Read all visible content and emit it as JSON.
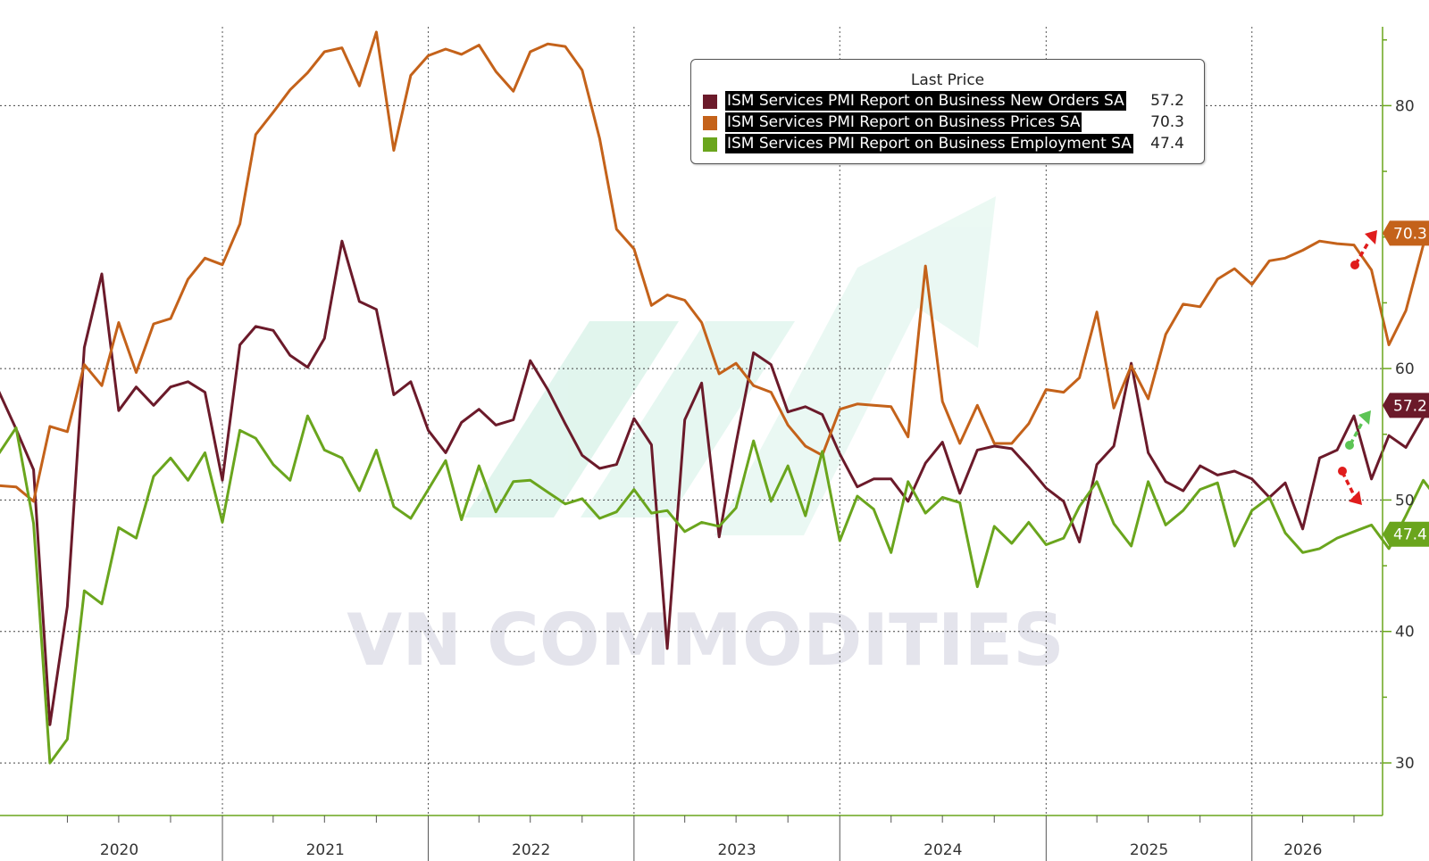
{
  "chart_data": {
    "type": "line",
    "title": "",
    "xlabel": "",
    "ylabel": "",
    "ylim": [
      26,
      86
    ],
    "x_ticks": [
      "2020",
      "2021",
      "2022",
      "2023",
      "2024",
      "2025",
      "2026"
    ],
    "y_ticks": [
      30,
      40,
      50,
      60,
      80
    ],
    "grid": true,
    "legend": {
      "title": "Last Price",
      "placement": "top-right"
    },
    "watermark": "VN COMMODITIES",
    "series": [
      {
        "name": "ISM Services PMI Report on Business New Orders SA",
        "last": "57.2",
        "color": "#6b1a2a",
        "start": "2019-12",
        "values": [
          58.3,
          55.4,
          52.3,
          32.9,
          41.9,
          61.6,
          67.2,
          56.8,
          58.6,
          57.2,
          58.6,
          59.0,
          58.2,
          51.5,
          61.8,
          63.2,
          62.9,
          61.0,
          60.1,
          62.3,
          69.7,
          65.1,
          64.5,
          58.0,
          59.0,
          55.3,
          53.6,
          55.9,
          56.9,
          55.7,
          56.1,
          60.6,
          58.4,
          55.8,
          53.4,
          52.4,
          52.7,
          56.2,
          54.2,
          38.7,
          56.1,
          58.9,
          47.2,
          54.3,
          61.2,
          60.3,
          56.7,
          57.1,
          56.5,
          53.5,
          51.0,
          51.6,
          51.6,
          49.9,
          52.8,
          54.4,
          50.5,
          53.8,
          54.1,
          53.9,
          52.5,
          50.9,
          49.9,
          46.8,
          52.7,
          54.1,
          60.4,
          53.6,
          51.4,
          50.7,
          52.6,
          51.9,
          52.2,
          51.6,
          50.2,
          51.3,
          47.8,
          53.2,
          53.8,
          56.4,
          51.6,
          54.9,
          54.0,
          56.3,
          57.0,
          51.9,
          55.7,
          52.8,
          58.4,
          61.0,
          52.0,
          56.5,
          55.8,
          57.2
        ]
      },
      {
        "name": "ISM Services PMI Report on Business Prices SA",
        "last": "70.3",
        "color": "#c4621a",
        "start": "2019-12",
        "values": [
          51.1,
          51.0,
          49.9,
          55.6,
          55.2,
          60.3,
          58.7,
          63.5,
          59.7,
          63.4,
          63.8,
          66.8,
          68.4,
          67.9,
          71.0,
          77.8,
          79.5,
          81.2,
          82.5,
          84.1,
          84.4,
          81.5,
          85.6,
          76.6,
          82.3,
          83.8,
          84.3,
          83.9,
          84.6,
          82.6,
          81.1,
          84.1,
          84.7,
          84.5,
          82.7,
          77.5,
          70.6,
          69.1,
          64.8,
          65.6,
          65.2,
          63.5,
          59.6,
          60.4,
          58.7,
          58.2,
          55.7,
          54.1,
          53.4,
          56.9,
          57.3,
          57.2,
          57.1,
          54.8,
          67.8,
          57.5,
          54.3,
          57.2,
          54.3,
          54.3,
          55.8,
          58.4,
          58.2,
          59.3,
          64.3,
          57.0,
          60.2,
          57.7,
          62.6,
          64.9,
          64.7,
          66.8,
          67.6,
          66.4,
          68.2,
          68.4,
          69.0,
          69.7,
          69.5,
          69.4,
          67.5,
          61.8,
          64.4,
          69.4,
          70.7,
          71.0,
          70.3,
          70.3,
          71.0,
          69.2,
          70.3,
          70.3,
          69.4,
          70.3
        ]
      },
      {
        "name": "ISM Services PMI Report on Business Employment SA",
        "last": "47.4",
        "color": "#6aa51d",
        "start": "2019-12",
        "values": [
          53.5,
          55.5,
          48.2,
          30.0,
          31.8,
          43.1,
          42.1,
          47.9,
          47.1,
          51.8,
          53.2,
          51.5,
          53.6,
          48.3,
          55.3,
          54.7,
          52.7,
          51.5,
          56.4,
          53.8,
          53.2,
          50.7,
          53.8,
          49.5,
          48.6,
          50.8,
          53.0,
          48.5,
          52.6,
          49.1,
          51.4,
          51.5,
          50.6,
          49.7,
          50.1,
          48.6,
          49.1,
          50.8,
          49.0,
          49.2,
          47.6,
          48.3,
          48.0,
          49.4,
          54.5,
          49.9,
          52.6,
          48.8,
          53.7,
          46.9,
          50.3,
          49.3,
          46.0,
          51.4,
          49.0,
          50.2,
          49.8,
          43.4,
          48.0,
          46.7,
          48.3,
          46.6,
          47.1,
          49.5,
          51.4,
          48.2,
          46.5,
          51.4,
          48.1,
          49.2,
          50.8,
          51.3,
          46.5,
          49.2,
          50.2,
          47.5,
          46.0,
          46.3,
          47.1,
          47.6,
          48.1,
          46.3,
          48.8,
          51.5,
          49.8,
          51.3,
          44.6,
          47.8,
          48.4,
          47.6,
          51.2,
          47.4
        ]
      }
    ]
  }
}
